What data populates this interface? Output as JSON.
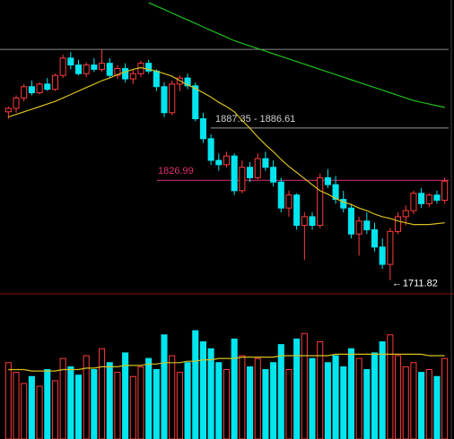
{
  "chart_data": {
    "type": "candlestick",
    "ylim": [
      1696,
      2035
    ],
    "up_color": "#ff3c3c",
    "down_color": "#00e5ee",
    "open": [
      1906,
      1910,
      1922,
      1935,
      1928,
      1938,
      1932,
      1948,
      1968,
      1960,
      1950,
      1960,
      1955,
      1962,
      1948,
      1956,
      1944,
      1950,
      1962,
      1953,
      1935,
      1905,
      1938,
      1945,
      1936,
      1898,
      1875,
      1850,
      1845,
      1855,
      1815,
      1842,
      1830,
      1852,
      1842,
      1825,
      1795,
      1810,
      1775,
      1785,
      1775,
      1830,
      1822,
      1805,
      1795,
      1765,
      1780,
      1770,
      1750,
      1730,
      1768,
      1785,
      1792,
      1812,
      1800,
      1810,
      1804
    ],
    "high": [
      1912,
      1925,
      1938,
      1942,
      1940,
      1945,
      1950,
      1972,
      1975,
      1966,
      1963,
      1968,
      1978,
      1968,
      1960,
      1962,
      1955,
      1965,
      1966,
      1955,
      1940,
      1942,
      1948,
      1950,
      1940,
      1905,
      1880,
      1858,
      1860,
      1858,
      1850,
      1848,
      1858,
      1860,
      1850,
      1830,
      1815,
      1812,
      1790,
      1790,
      1835,
      1840,
      1832,
      1815,
      1800,
      1785,
      1790,
      1778,
      1760,
      1772,
      1790,
      1798,
      1815,
      1818,
      1812,
      1815,
      1830
    ],
    "low": [
      1898,
      1905,
      1918,
      1925,
      1926,
      1930,
      1930,
      1945,
      1955,
      1948,
      1946,
      1952,
      1952,
      1945,
      1944,
      1940,
      1938,
      1946,
      1950,
      1930,
      1900,
      1902,
      1930,
      1932,
      1895,
      1870,
      1845,
      1838,
      1842,
      1810,
      1812,
      1825,
      1828,
      1838,
      1820,
      1790,
      1785,
      1770,
      1735,
      1770,
      1772,
      1818,
      1800,
      1790,
      1760,
      1740,
      1765,
      1745,
      1725,
      1711.82,
      1765,
      1775,
      1788,
      1795,
      1796,
      1800,
      1800
    ],
    "close": [
      1910,
      1922,
      1935,
      1928,
      1938,
      1932,
      1948,
      1968,
      1960,
      1950,
      1960,
      1955,
      1962,
      1948,
      1956,
      1944,
      1950,
      1962,
      1953,
      1935,
      1905,
      1938,
      1945,
      1936,
      1898,
      1875,
      1850,
      1845,
      1855,
      1815,
      1842,
      1830,
      1852,
      1842,
      1825,
      1795,
      1810,
      1775,
      1785,
      1775,
      1830,
      1822,
      1805,
      1795,
      1765,
      1780,
      1770,
      1750,
      1730,
      1768,
      1785,
      1792,
      1812,
      1800,
      1810,
      1804,
      1826
    ],
    "ma": [
      {
        "color": "#d8c020",
        "values": [
          1900,
          1903,
          1906,
          1909,
          1912,
          1915,
          1918,
          1922,
          1926,
          1930,
          1934,
          1938,
          1942,
          1945,
          1949,
          1952,
          1955,
          1957,
          1955,
          1953,
          1950,
          1947,
          1942,
          1937,
          1933,
          1928,
          1923,
          1917,
          1912,
          1906,
          1896,
          1887,
          1877,
          1868,
          1860,
          1851,
          1843,
          1836,
          1829,
          1822,
          1815,
          1811,
          1806,
          1802,
          1799,
          1795,
          1792,
          1788,
          1785,
          1783,
          1780,
          1778,
          1776,
          1776,
          1776,
          1777,
          1778
        ]
      },
      {
        "color": "#20c020",
        "values": [
          null,
          null,
          null,
          null,
          null,
          null,
          null,
          null,
          null,
          null,
          null,
          null,
          null,
          null,
          null,
          null,
          null,
          null,
          2032,
          2028,
          2024,
          2020,
          2016,
          2012,
          2008,
          2004,
          2000,
          1996,
          1992,
          1988,
          1985,
          1982,
          1979,
          1976,
          1973,
          1970,
          1967,
          1964,
          1961,
          1958,
          1955,
          1952,
          1949,
          1946,
          1943,
          1940,
          1937,
          1934,
          1931,
          1928,
          1925,
          1922,
          1919,
          1917,
          1915,
          1913,
          1911
        ]
      }
    ],
    "levels": [
      {
        "value": 1978,
        "color": "#8a8a8a"
      },
      {
        "value": 1887.35,
        "label": "1887.35 - 1886.61",
        "color": "#9a9a9a"
      },
      {
        "value": 1826.99,
        "color": "#e0307a"
      }
    ],
    "volume": {
      "ylim": [
        0,
        100
      ],
      "values": [
        55,
        48,
        40,
        45,
        38,
        50,
        42,
        58,
        52,
        46,
        60,
        50,
        65,
        55,
        48,
        62,
        45,
        52,
        58,
        50,
        75,
        60,
        48,
        55,
        78,
        70,
        65,
        55,
        50,
        72,
        60,
        52,
        58,
        50,
        55,
        68,
        50,
        72,
        76,
        58,
        70,
        55,
        60,
        52,
        65,
        58,
        50,
        62,
        70,
        75,
        60,
        52,
        55,
        48,
        50,
        45,
        58
      ],
      "ma": {
        "color": "#d8c020",
        "values": [
          50,
          50,
          50,
          49,
          49,
          49,
          49,
          50,
          50,
          50,
          51,
          51,
          52,
          52,
          52,
          53,
          53,
          53,
          54,
          54,
          55,
          55,
          55,
          56,
          56,
          57,
          57,
          58,
          58,
          58,
          59,
          59,
          59,
          59,
          59,
          60,
          60,
          60,
          60,
          60,
          60,
          60,
          61,
          61,
          61,
          61,
          61,
          61,
          61,
          61,
          61,
          61,
          61,
          61,
          60,
          60,
          60
        ]
      }
    }
  }
}
